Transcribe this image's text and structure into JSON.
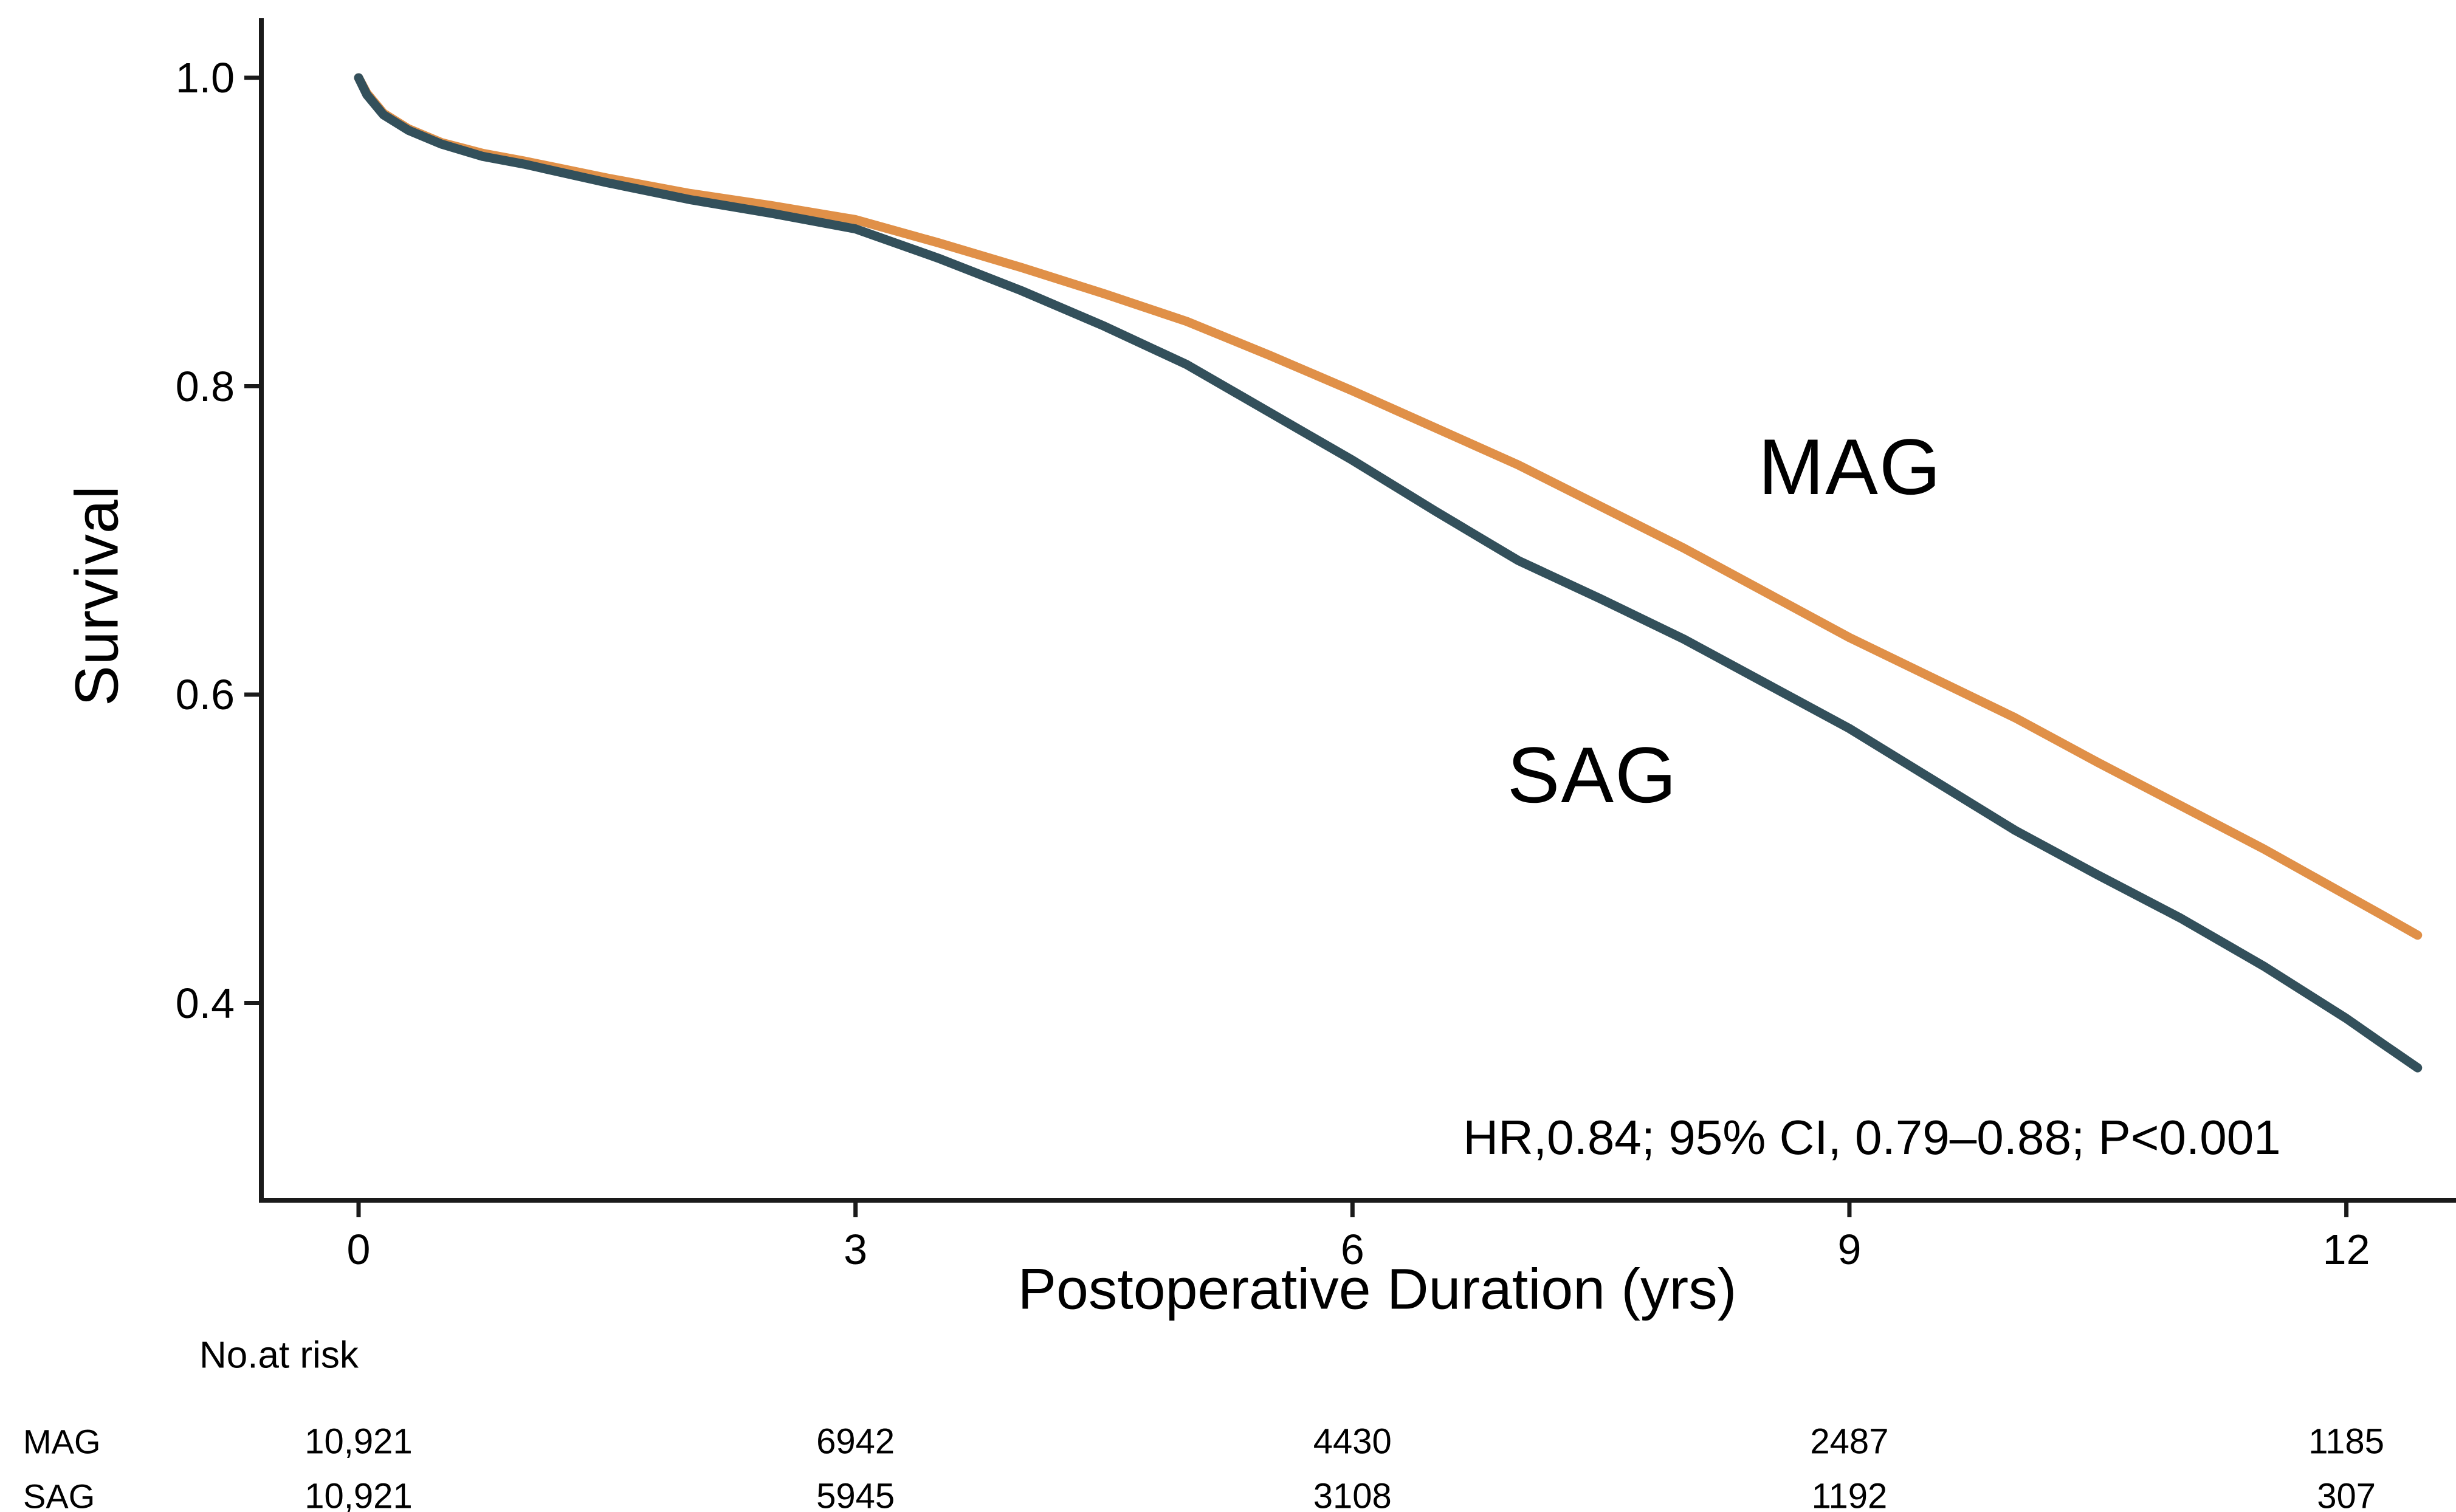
{
  "figure": {
    "background": "#ffffff",
    "axis_color": "#1a1a1a",
    "text_color": "#000000"
  },
  "chart_data": {
    "type": "line",
    "subtype": "kaplan-meier-survival",
    "title": "",
    "xlabel": "Postoperative Duration (yrs)",
    "ylabel": "Survival",
    "x_ticks": [
      0,
      3,
      6,
      9,
      12
    ],
    "x_tick_labels": [
      "0",
      "3",
      "6",
      "9",
      "12"
    ],
    "y_ticks": [
      1.0,
      0.8,
      0.6,
      0.4
    ],
    "y_tick_labels": [
      "1.0",
      "0.8",
      "0.6",
      "0.4"
    ],
    "xlim": [
      -0.6,
      12.66
    ],
    "ylim": [
      0.27,
      1.03
    ],
    "grid": false,
    "legend": "inline-curve-labels",
    "annotation": "HR,0.84; 95% CI, 0.79–0.88; P<0.001",
    "series": [
      {
        "name": "MAG",
        "color": "#E09048",
        "points": [
          [
            0.0,
            1.0
          ],
          [
            0.05,
            0.99
          ],
          [
            0.15,
            0.977
          ],
          [
            0.3,
            0.967
          ],
          [
            0.5,
            0.958
          ],
          [
            0.75,
            0.951
          ],
          [
            1.0,
            0.946
          ],
          [
            1.5,
            0.935
          ],
          [
            2.0,
            0.925
          ],
          [
            2.5,
            0.917
          ],
          [
            3.0,
            0.908
          ],
          [
            3.5,
            0.893
          ],
          [
            4.0,
            0.877
          ],
          [
            4.5,
            0.86
          ],
          [
            5.0,
            0.842
          ],
          [
            5.5,
            0.82
          ],
          [
            6.0,
            0.797
          ],
          [
            6.5,
            0.773
          ],
          [
            7.0,
            0.749
          ],
          [
            7.5,
            0.722
          ],
          [
            8.0,
            0.695
          ],
          [
            8.5,
            0.666
          ],
          [
            9.0,
            0.637
          ],
          [
            9.5,
            0.611
          ],
          [
            10.0,
            0.585
          ],
          [
            10.5,
            0.556
          ],
          [
            11.0,
            0.528
          ],
          [
            11.5,
            0.5
          ],
          [
            12.0,
            0.47
          ],
          [
            12.2,
            0.458
          ],
          [
            12.43,
            0.444
          ]
        ]
      },
      {
        "name": "SAG",
        "color": "#33505B",
        "points": [
          [
            0.0,
            1.0
          ],
          [
            0.05,
            0.989
          ],
          [
            0.15,
            0.976
          ],
          [
            0.3,
            0.966
          ],
          [
            0.5,
            0.957
          ],
          [
            0.75,
            0.949
          ],
          [
            1.0,
            0.944
          ],
          [
            1.5,
            0.932
          ],
          [
            2.0,
            0.921
          ],
          [
            2.5,
            0.912
          ],
          [
            3.0,
            0.902
          ],
          [
            3.5,
            0.883
          ],
          [
            4.0,
            0.862
          ],
          [
            4.5,
            0.839
          ],
          [
            5.0,
            0.814
          ],
          [
            5.5,
            0.783
          ],
          [
            6.0,
            0.752
          ],
          [
            6.5,
            0.719
          ],
          [
            7.0,
            0.687
          ],
          [
            7.5,
            0.662
          ],
          [
            8.0,
            0.636
          ],
          [
            8.5,
            0.607
          ],
          [
            9.0,
            0.578
          ],
          [
            9.5,
            0.545
          ],
          [
            10.0,
            0.512
          ],
          [
            10.5,
            0.483
          ],
          [
            11.0,
            0.455
          ],
          [
            11.5,
            0.424
          ],
          [
            12.0,
            0.39
          ],
          [
            12.2,
            0.375
          ],
          [
            12.43,
            0.358
          ]
        ]
      }
    ]
  },
  "curve_labels": {
    "mag": "MAG",
    "sag": "SAG"
  },
  "risk_table": {
    "header": "No.at risk",
    "time_points": [
      0,
      3,
      6,
      9,
      12
    ],
    "rows": [
      {
        "label": "MAG",
        "values": [
          "10,921",
          "6942",
          "4430",
          "2487",
          "1185"
        ]
      },
      {
        "label": "SAG",
        "values": [
          "10,921",
          "5945",
          "3108",
          "1192",
          "307"
        ]
      }
    ]
  }
}
